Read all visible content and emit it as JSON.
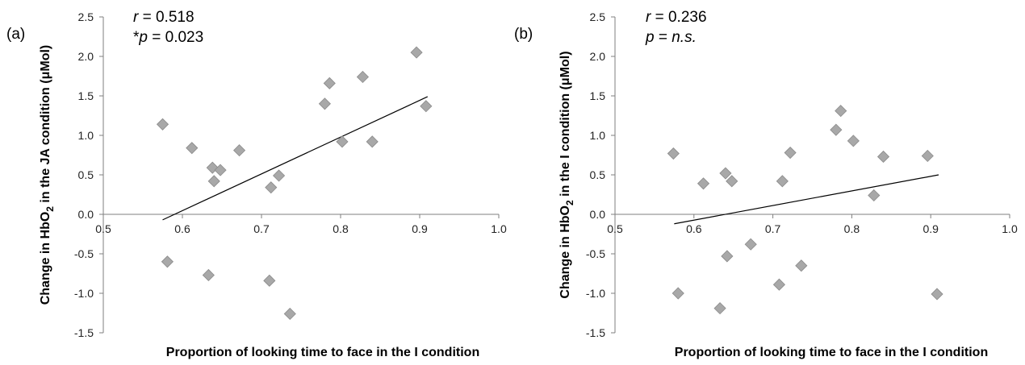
{
  "chart_data": [
    {
      "type": "scatter",
      "panel_label": "(a)",
      "stat_r": "0.518",
      "stat_p": "0.023",
      "stat_p_prefix": "*",
      "xlabel": "Proportion of looking time to face in the I condition",
      "ylabel": "Change in HbO2 in the JA condition (μMol)",
      "ylabel_parts": {
        "pre": "Change in HbO",
        "sub": "2",
        "post": " in the JA condition (μMol)"
      },
      "xlim": [
        0.5,
        1.0
      ],
      "ylim": [
        -1.5,
        2.5
      ],
      "x_ticks": [
        "0.5",
        "0.6",
        "0.7",
        "0.8",
        "0.9",
        "1.0"
      ],
      "y_ticks": [
        "-1.5",
        "-1.0",
        "-0.5",
        "0.0",
        "0.5",
        "1.0",
        "1.5",
        "2.0",
        "2.5"
      ],
      "points": [
        {
          "x": 0.575,
          "y": 1.14
        },
        {
          "x": 0.612,
          "y": 0.84
        },
        {
          "x": 0.638,
          "y": 0.59
        },
        {
          "x": 0.64,
          "y": 0.42
        },
        {
          "x": 0.648,
          "y": 0.56
        },
        {
          "x": 0.672,
          "y": 0.81
        },
        {
          "x": 0.712,
          "y": 0.34
        },
        {
          "x": 0.722,
          "y": 0.49
        },
        {
          "x": 0.78,
          "y": 1.4
        },
        {
          "x": 0.786,
          "y": 1.66
        },
        {
          "x": 0.802,
          "y": 0.92
        },
        {
          "x": 0.828,
          "y": 1.74
        },
        {
          "x": 0.84,
          "y": 0.92
        },
        {
          "x": 0.896,
          "y": 2.05
        },
        {
          "x": 0.908,
          "y": 1.37
        },
        {
          "x": 0.581,
          "y": -0.6
        },
        {
          "x": 0.633,
          "y": -0.77
        },
        {
          "x": 0.71,
          "y": -0.84
        },
        {
          "x": 0.736,
          "y": -1.26
        }
      ],
      "trendline": [
        {
          "x": 0.575,
          "y": -0.07
        },
        {
          "x": 0.91,
          "y": 1.49
        }
      ]
    },
    {
      "type": "scatter",
      "panel_label": "(b)",
      "stat_r": "0.236",
      "stat_p": "n.s.",
      "stat_p_prefix": "",
      "xlabel": "Proportion of looking time to face in the I condition",
      "ylabel": "Change in HbO2 in the I condition (μMol)",
      "ylabel_parts": {
        "pre": "Change in HbO",
        "sub": "2",
        "post": " in the I condition (μMol)"
      },
      "xlim": [
        0.5,
        1.0
      ],
      "ylim": [
        -1.5,
        2.5
      ],
      "x_ticks": [
        "0.5",
        "0.6",
        "0.7",
        "0.8",
        "0.9",
        "1.0"
      ],
      "y_ticks": [
        "-1.5",
        "-1.0",
        "-0.5",
        "0.0",
        "0.5",
        "1.0",
        "1.5",
        "2.0",
        "2.5"
      ],
      "points": [
        {
          "x": 0.574,
          "y": 0.77
        },
        {
          "x": 0.612,
          "y": 0.39
        },
        {
          "x": 0.64,
          "y": 0.52
        },
        {
          "x": 0.648,
          "y": 0.42
        },
        {
          "x": 0.712,
          "y": 0.42
        },
        {
          "x": 0.722,
          "y": 0.78
        },
        {
          "x": 0.78,
          "y": 1.07
        },
        {
          "x": 0.786,
          "y": 1.31
        },
        {
          "x": 0.802,
          "y": 0.93
        },
        {
          "x": 0.828,
          "y": 0.24
        },
        {
          "x": 0.84,
          "y": 0.73
        },
        {
          "x": 0.896,
          "y": 0.74
        },
        {
          "x": 0.58,
          "y": -1.0
        },
        {
          "x": 0.633,
          "y": -1.19
        },
        {
          "x": 0.642,
          "y": -0.53
        },
        {
          "x": 0.672,
          "y": -0.38
        },
        {
          "x": 0.708,
          "y": -0.89
        },
        {
          "x": 0.736,
          "y": -0.65
        },
        {
          "x": 0.908,
          "y": -1.01
        }
      ],
      "trendline": [
        {
          "x": 0.575,
          "y": -0.12
        },
        {
          "x": 0.91,
          "y": 0.5
        }
      ]
    }
  ]
}
